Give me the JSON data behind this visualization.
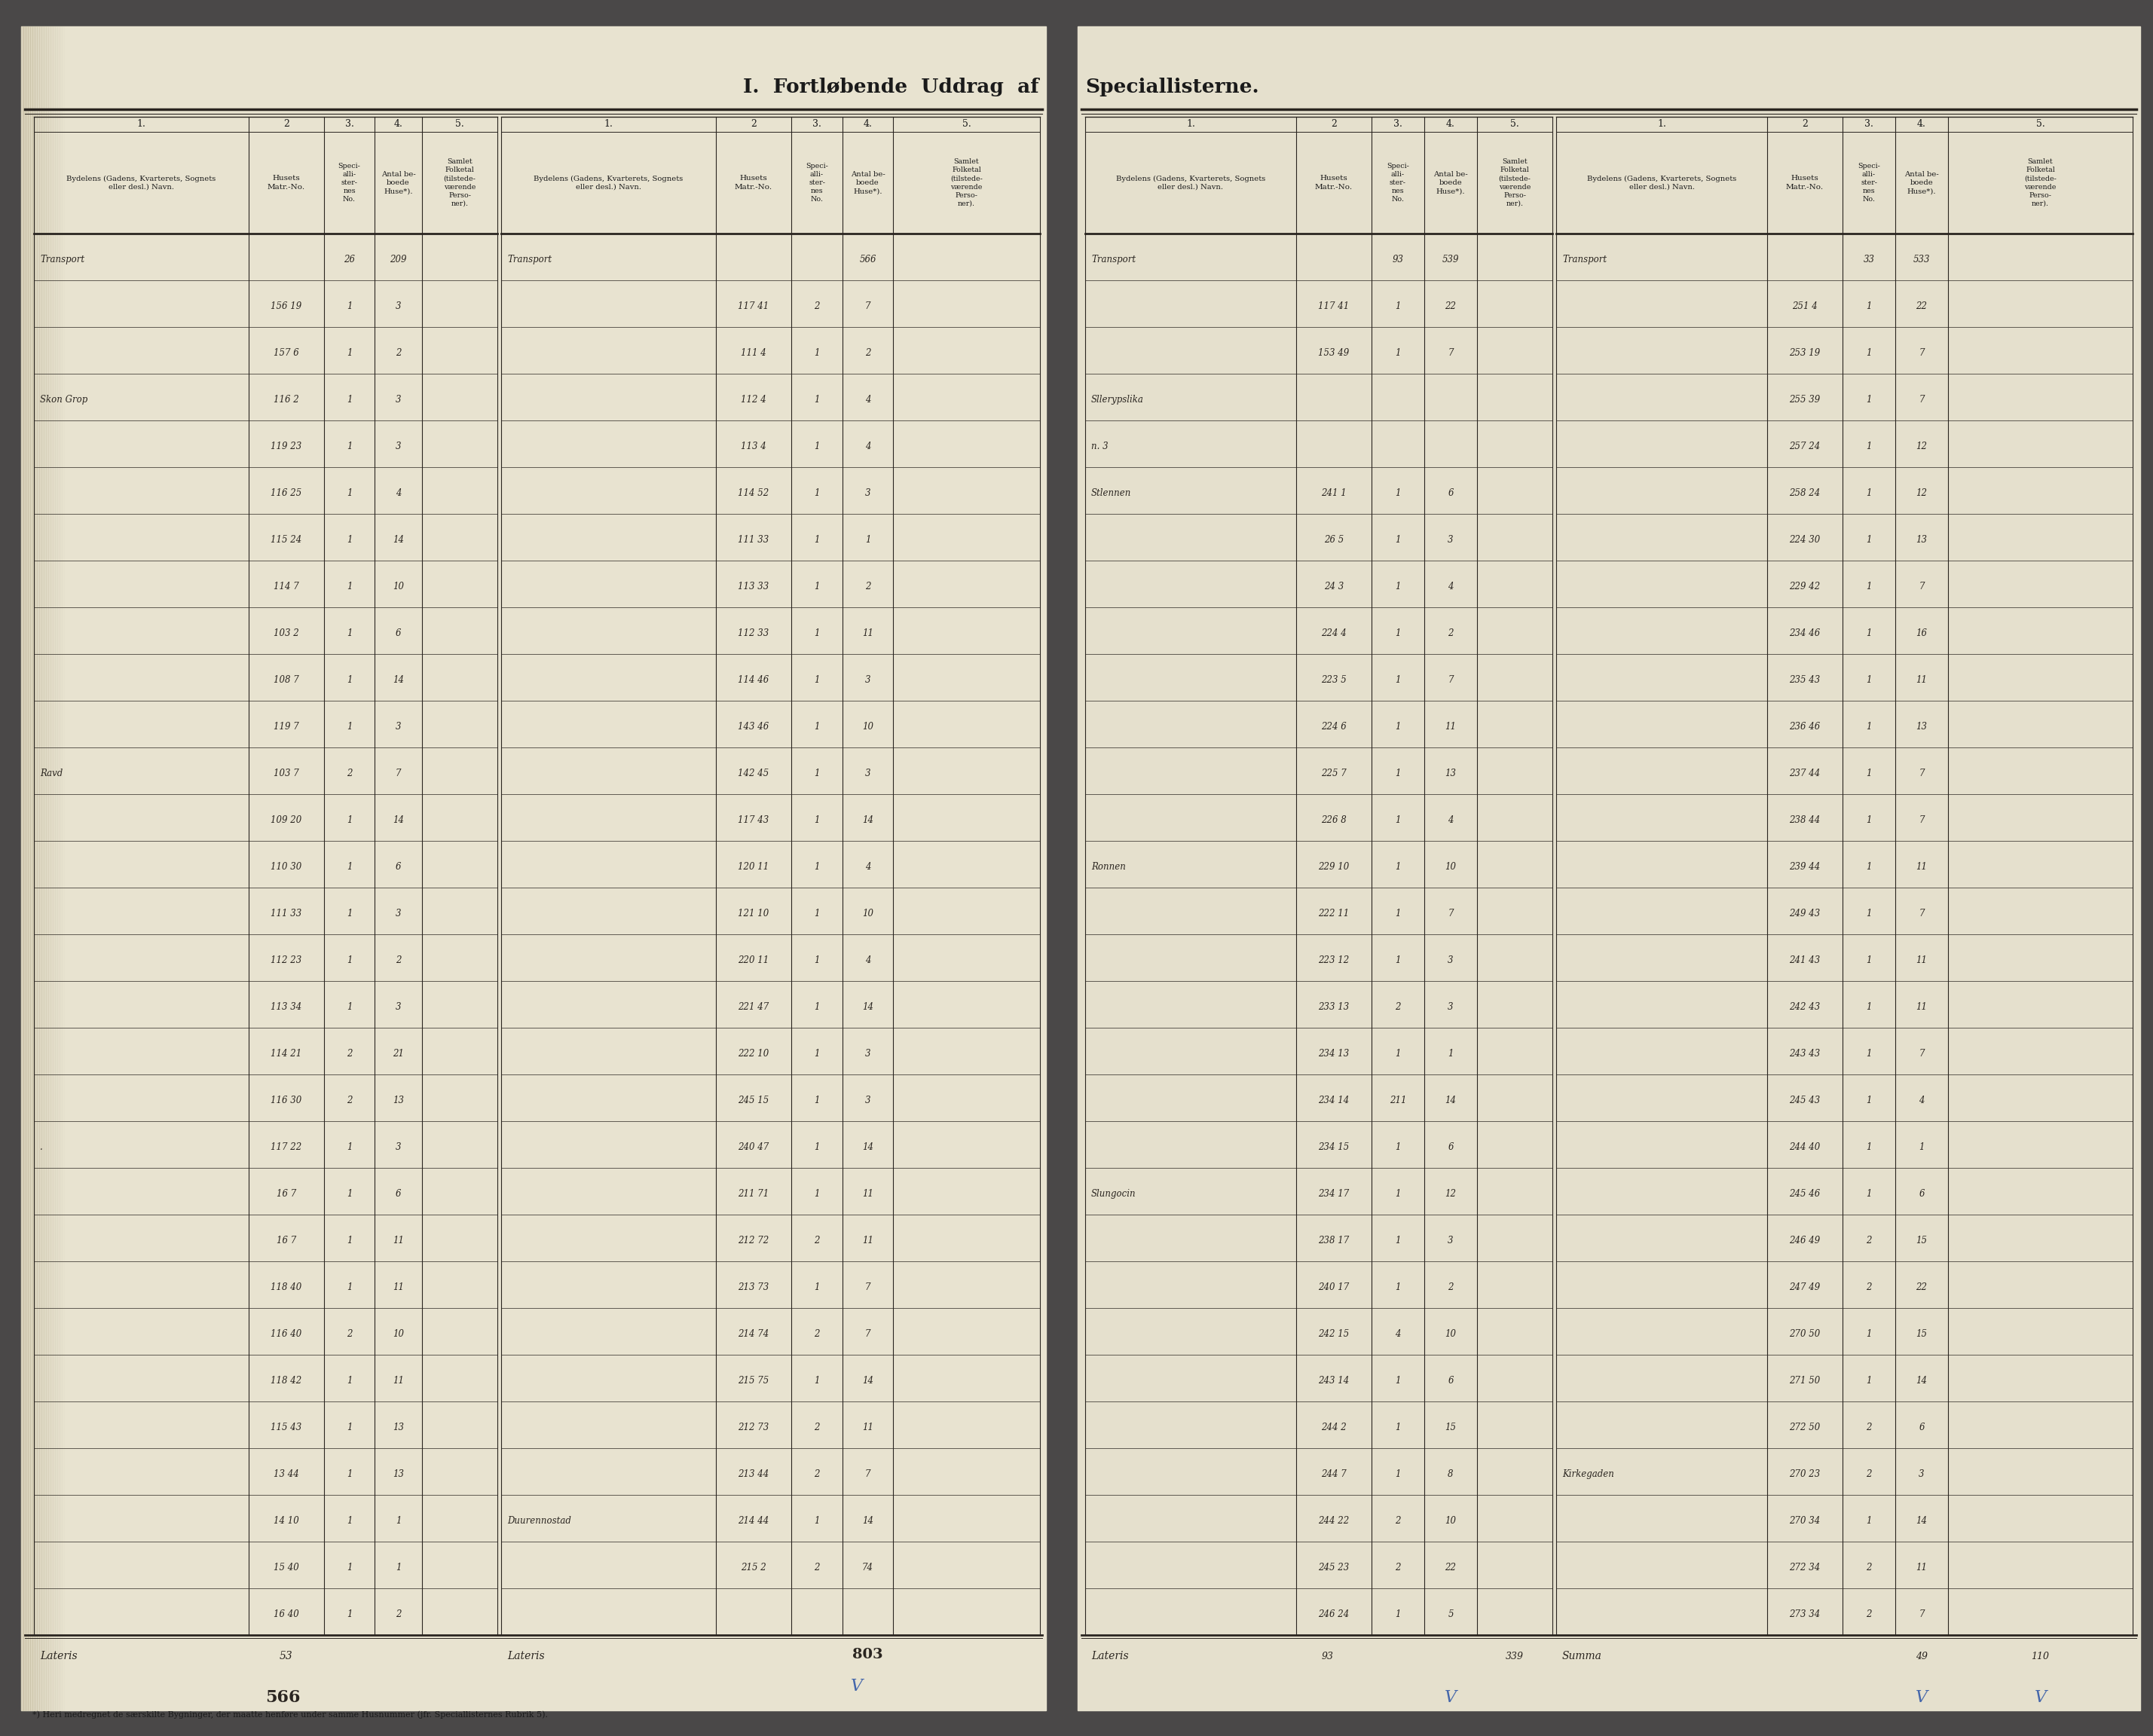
{
  "title_left": "I.  Fortløbende  Uddrag  af",
  "title_right": "Speciallisterne.",
  "paper_left_color": "#e8e3d0",
  "paper_right_color": "#e5e0cd",
  "margin_color": "#4a4848",
  "line_color": "#2a2520",
  "col_nums": [
    "1.",
    "2",
    "3.",
    "4.",
    "5."
  ],
  "col_sub_headers": [
    "Bydelens (Gadens, Kvarterets, Sognets\neller desl.) Navn.",
    "Husets\nMatr.-No.",
    "Speci-\nalli-\nster-\nnes\nNo.",
    "Antal be-\nboede\nHuse*).",
    "Samlet\nFolketal\n(tilstede-\nværende\nPerso-\nner)."
  ],
  "footer_note": "*) Heri medregnet de særskilte Bygninger, der maatte henføre under samme Husnummer (jfr. Speciallisternes Rubrik 5).",
  "blue_color": "#4466aa",
  "handwritten_color": "#2a2520",
  "rows_ll": [
    [
      "Transport",
      "",
      "26",
      "209",
      ""
    ],
    [
      "",
      "156 19",
      "1",
      "3",
      ""
    ],
    [
      "",
      "157 6",
      "1",
      "2",
      ""
    ],
    [
      "Skon Grop",
      "116 2",
      "1",
      "3",
      ""
    ],
    [
      "",
      "119 23",
      "1",
      "3",
      ""
    ],
    [
      "",
      "116 25",
      "1",
      "4",
      ""
    ],
    [
      "",
      "115 24",
      "1",
      "14",
      ""
    ],
    [
      "",
      "114 7",
      "1",
      "10",
      ""
    ],
    [
      "",
      "103 2",
      "1",
      "6",
      ""
    ],
    [
      "",
      "108 7",
      "1",
      "14",
      ""
    ],
    [
      "",
      "119 7",
      "1",
      "3",
      ""
    ],
    [
      "Ravd",
      "103 7",
      "2",
      "7",
      ""
    ],
    [
      "",
      "109 20",
      "1",
      "14",
      ""
    ],
    [
      "",
      "110 30",
      "1",
      "6",
      ""
    ],
    [
      "",
      "111 33",
      "1",
      "3",
      ""
    ],
    [
      "",
      "112 23",
      "1",
      "2",
      ""
    ],
    [
      "",
      "113 34",
      "1",
      "3",
      ""
    ],
    [
      "",
      "114 21",
      "2",
      "21",
      ""
    ],
    [
      "",
      "116 30",
      "2",
      "13",
      ""
    ],
    [
      ".",
      "117 22",
      "1",
      "3",
      ""
    ],
    [
      "",
      "16 7",
      "1",
      "6",
      ""
    ],
    [
      "",
      "16 7",
      "1",
      "11",
      ""
    ],
    [
      "",
      "118 40",
      "1",
      "11",
      ""
    ],
    [
      "",
      "116 40",
      "2",
      "10",
      ""
    ],
    [
      "",
      "118 42",
      "1",
      "11",
      ""
    ],
    [
      "",
      "115 43",
      "1",
      "13",
      ""
    ],
    [
      "",
      "13 44",
      "1",
      "13",
      ""
    ],
    [
      "",
      "14 10",
      "1",
      "1",
      ""
    ],
    [
      "",
      "15 40",
      "1",
      "1",
      ""
    ],
    [
      "",
      "16 40",
      "1",
      "2",
      ""
    ]
  ],
  "rows_lr": [
    [
      "Transport",
      "",
      "",
      "566",
      ""
    ],
    [
      "",
      "117 41",
      "2",
      "7",
      ""
    ],
    [
      "",
      "111 4",
      "1",
      "2",
      ""
    ],
    [
      "",
      "112 4",
      "1",
      "4",
      ""
    ],
    [
      "",
      "113 4",
      "1",
      "4",
      ""
    ],
    [
      "",
      "114 52",
      "1",
      "3",
      ""
    ],
    [
      "",
      "111 33",
      "1",
      "1",
      ""
    ],
    [
      "",
      "113 33",
      "1",
      "2",
      ""
    ],
    [
      "",
      "112 33",
      "1",
      "11",
      ""
    ],
    [
      "",
      "114 46",
      "1",
      "3",
      ""
    ],
    [
      "",
      "143 46",
      "1",
      "10",
      ""
    ],
    [
      "",
      "142 45",
      "1",
      "3",
      ""
    ],
    [
      "",
      "117 43",
      "1",
      "14",
      ""
    ],
    [
      "",
      "120 11",
      "1",
      "4",
      ""
    ],
    [
      "",
      "121 10",
      "1",
      "10",
      ""
    ],
    [
      "",
      "220 11",
      "1",
      "4",
      ""
    ],
    [
      "",
      "221 47",
      "1",
      "14",
      ""
    ],
    [
      "",
      "222 10",
      "1",
      "3",
      ""
    ],
    [
      "",
      "245 15",
      "1",
      "3",
      ""
    ],
    [
      "",
      "240 47",
      "1",
      "14",
      ""
    ],
    [
      "",
      "211 71",
      "1",
      "11",
      ""
    ],
    [
      "",
      "212 72",
      "2",
      "11",
      ""
    ],
    [
      "",
      "213 73",
      "1",
      "7",
      ""
    ],
    [
      "",
      "214 74",
      "2",
      "7",
      ""
    ],
    [
      "",
      "215 75",
      "1",
      "14",
      ""
    ],
    [
      "",
      "212 73",
      "2",
      "11",
      ""
    ],
    [
      "",
      "213 44",
      "2",
      "7",
      ""
    ],
    [
      "Duurennostad",
      "214 44",
      "1",
      "14",
      ""
    ],
    [
      "",
      "215 2",
      "2",
      "74",
      ""
    ],
    [
      "",
      "",
      "",
      "",
      ""
    ]
  ],
  "rows_rl": [
    [
      "Transport",
      "",
      "93",
      "539",
      ""
    ],
    [
      "",
      "117 41",
      "1",
      "22",
      ""
    ],
    [
      "",
      "153 49",
      "1",
      "7",
      ""
    ],
    [
      "Sllerypslika",
      "",
      "",
      "",
      ""
    ],
    [
      "n. 3",
      "",
      "",
      "",
      ""
    ],
    [
      "Stlennen",
      "241 1",
      "1",
      "6",
      ""
    ],
    [
      "",
      "26 5",
      "1",
      "3",
      ""
    ],
    [
      "",
      "24 3",
      "1",
      "4",
      ""
    ],
    [
      "",
      "224 4",
      "1",
      "2",
      ""
    ],
    [
      "",
      "223 5",
      "1",
      "7",
      ""
    ],
    [
      "",
      "224 6",
      "1",
      "11",
      ""
    ],
    [
      "",
      "225 7",
      "1",
      "13",
      ""
    ],
    [
      "",
      "226 8",
      "1",
      "4",
      ""
    ],
    [
      "Ronnen",
      "229 10",
      "1",
      "10",
      ""
    ],
    [
      "",
      "222 11",
      "1",
      "7",
      ""
    ],
    [
      "",
      "223 12",
      "1",
      "3",
      ""
    ],
    [
      "",
      "233 13",
      "2",
      "3",
      ""
    ],
    [
      "",
      "234 13",
      "1",
      "1",
      ""
    ],
    [
      "",
      "234 14",
      "211",
      "14",
      ""
    ],
    [
      "",
      "234 15",
      "1",
      "6",
      ""
    ],
    [
      "Slungocin",
      "234 17",
      "1",
      "12",
      ""
    ],
    [
      "",
      "238 17",
      "1",
      "3",
      ""
    ],
    [
      "",
      "240 17",
      "1",
      "2",
      ""
    ],
    [
      "",
      "242 15",
      "4",
      "10",
      ""
    ],
    [
      "",
      "243 14",
      "1",
      "6",
      ""
    ],
    [
      "",
      "244 2",
      "1",
      "15",
      ""
    ],
    [
      "",
      "244 7",
      "1",
      "8",
      ""
    ],
    [
      "",
      "244 22",
      "2",
      "10",
      ""
    ],
    [
      "",
      "245 23",
      "2",
      "22",
      ""
    ],
    [
      "",
      "246 24",
      "1",
      "5",
      ""
    ]
  ],
  "rows_rr": [
    [
      "Transport",
      "",
      "33",
      "533",
      ""
    ],
    [
      "",
      "251 4",
      "1",
      "22",
      ""
    ],
    [
      "",
      "253 19",
      "1",
      "7",
      ""
    ],
    [
      "",
      "255 39",
      "1",
      "7",
      ""
    ],
    [
      "",
      "257 24",
      "1",
      "12",
      ""
    ],
    [
      "",
      "258 24",
      "1",
      "12",
      ""
    ],
    [
      "",
      "224 30",
      "1",
      "13",
      ""
    ],
    [
      "",
      "229 42",
      "1",
      "7",
      ""
    ],
    [
      "",
      "234 46",
      "1",
      "16",
      ""
    ],
    [
      "",
      "235 43",
      "1",
      "11",
      ""
    ],
    [
      "",
      "236 46",
      "1",
      "13",
      ""
    ],
    [
      "",
      "237 44",
      "1",
      "7",
      ""
    ],
    [
      "",
      "238 44",
      "1",
      "7",
      ""
    ],
    [
      "",
      "239 44",
      "1",
      "11",
      ""
    ],
    [
      "",
      "249 43",
      "1",
      "7",
      ""
    ],
    [
      "",
      "241 43",
      "1",
      "11",
      ""
    ],
    [
      "",
      "242 43",
      "1",
      "11",
      ""
    ],
    [
      "",
      "243 43",
      "1",
      "7",
      ""
    ],
    [
      "",
      "245 43",
      "1",
      "4",
      ""
    ],
    [
      "",
      "244 40",
      "1",
      "1",
      ""
    ],
    [
      "",
      "245 46",
      "1",
      "6",
      ""
    ],
    [
      "",
      "246 49",
      "2",
      "15",
      ""
    ],
    [
      "",
      "247 49",
      "2",
      "22",
      ""
    ],
    [
      "",
      "270 50",
      "1",
      "15",
      ""
    ],
    [
      "",
      "271 50",
      "1",
      "14",
      ""
    ],
    [
      "",
      "272 50",
      "2",
      "6",
      ""
    ],
    [
      "Kirkegaden",
      "270 23",
      "2",
      "3",
      ""
    ],
    [
      "",
      "270 34",
      "1",
      "14",
      ""
    ],
    [
      "",
      "272 34",
      "2",
      "11",
      ""
    ],
    [
      "",
      "273 34",
      "2",
      "7",
      ""
    ]
  ]
}
